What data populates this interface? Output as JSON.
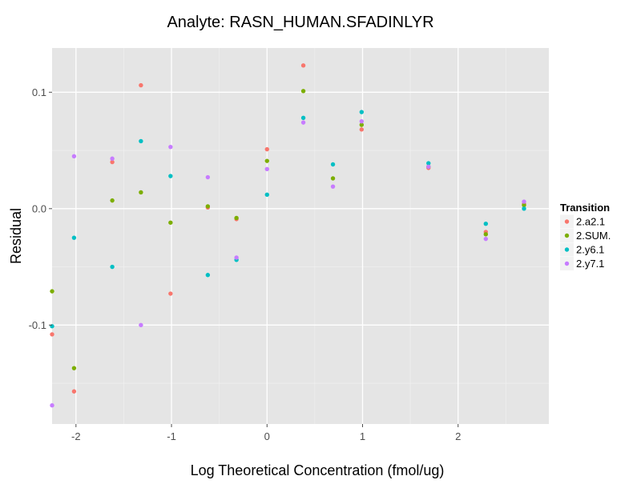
{
  "chart_data": {
    "type": "scatter",
    "title": "Analyte: RASN_HUMAN.SFADINLYR",
    "xlabel": "Log Theoretical Concentration (fmol/ug)",
    "ylabel": "Residual",
    "xlim": [
      -2.25,
      2.95
    ],
    "ylim": [
      -0.185,
      0.138
    ],
    "x_ticks": [
      {
        "value": -2,
        "label": "-2"
      },
      {
        "value": -1,
        "label": "-1"
      },
      {
        "value": 0,
        "label": "0"
      },
      {
        "value": 1,
        "label": "1"
      },
      {
        "value": 2,
        "label": "2"
      }
    ],
    "y_ticks": [
      {
        "value": -0.1,
        "label": "-0.1"
      },
      {
        "value": 0.0,
        "label": "0.0"
      },
      {
        "value": 0.1,
        "label": "0.1"
      }
    ],
    "legend": {
      "title": "Transition",
      "placement": "right"
    },
    "series": [
      {
        "name": "2.a2.1",
        "color": "#F8766D",
        "points": [
          [
            -2.25,
            -0.108
          ],
          [
            -2.02,
            -0.157
          ],
          [
            -1.62,
            0.04
          ],
          [
            -1.32,
            0.106
          ],
          [
            -1.01,
            -0.073
          ],
          [
            -0.62,
            0.001
          ],
          [
            -0.32,
            -0.009
          ],
          [
            0.0,
            0.051
          ],
          [
            0.38,
            0.123
          ],
          [
            0.99,
            0.068
          ],
          [
            1.69,
            0.035
          ],
          [
            2.29,
            -0.02
          ],
          [
            2.69,
            0.004
          ]
        ]
      },
      {
        "name": "2.SUM.",
        "color": "#7CAE00",
        "points": [
          [
            -2.25,
            -0.071
          ],
          [
            -2.02,
            -0.137
          ],
          [
            -1.62,
            0.007
          ],
          [
            -1.32,
            0.014
          ],
          [
            -1.01,
            -0.012
          ],
          [
            -0.62,
            0.002
          ],
          [
            -0.32,
            -0.008
          ],
          [
            0.0,
            0.041
          ],
          [
            0.38,
            0.101
          ],
          [
            0.69,
            0.026
          ],
          [
            0.99,
            0.072
          ],
          [
            1.69,
            0.036
          ],
          [
            2.29,
            -0.022
          ],
          [
            2.69,
            0.003
          ]
        ]
      },
      {
        "name": "2.y6.1",
        "color": "#00BFC4",
        "points": [
          [
            -2.25,
            -0.101
          ],
          [
            -2.02,
            -0.025
          ],
          [
            -1.62,
            -0.05
          ],
          [
            -1.32,
            0.058
          ],
          [
            -1.01,
            0.028
          ],
          [
            -0.62,
            -0.057
          ],
          [
            -0.32,
            -0.044
          ],
          [
            0.0,
            0.012
          ],
          [
            0.38,
            0.078
          ],
          [
            0.69,
            0.038
          ],
          [
            0.99,
            0.083
          ],
          [
            1.69,
            0.039
          ],
          [
            2.29,
            -0.013
          ],
          [
            2.69,
            0.0
          ]
        ]
      },
      {
        "name": "2.y7.1",
        "color": "#C77CFF",
        "points": [
          [
            -2.25,
            -0.169
          ],
          [
            -2.02,
            0.045
          ],
          [
            -1.62,
            0.043
          ],
          [
            -1.32,
            -0.1
          ],
          [
            -1.01,
            0.053
          ],
          [
            -0.62,
            0.027
          ],
          [
            -0.32,
            -0.042
          ],
          [
            0.0,
            0.034
          ],
          [
            0.38,
            0.074
          ],
          [
            0.69,
            0.019
          ],
          [
            0.99,
            0.075
          ],
          [
            1.69,
            0.036
          ],
          [
            2.29,
            -0.026
          ],
          [
            2.69,
            0.006
          ]
        ]
      }
    ]
  }
}
